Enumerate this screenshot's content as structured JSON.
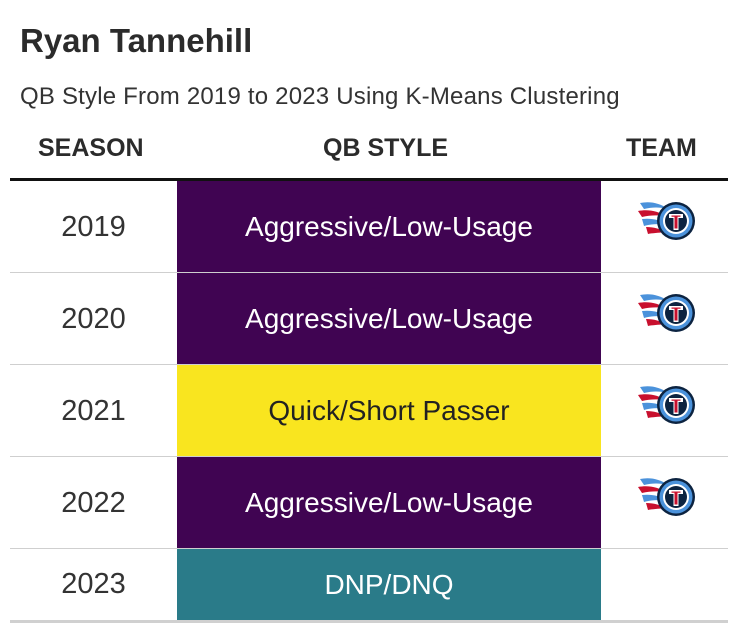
{
  "title": "Ryan Tannehill",
  "subtitle": "QB Style From 2019 to 2023 Using K-Means Clustering",
  "headers": {
    "season": "SEASON",
    "style": "QB STYLE",
    "team": "TEAM"
  },
  "colors": {
    "aggressive": "#400452",
    "quick": "#f9e51f",
    "dnp": "#2a7b89"
  },
  "rows": [
    {
      "season": "2019",
      "style": "Aggressive/Low-Usage",
      "team_icon": "titans-logo-icon"
    },
    {
      "season": "2020",
      "style": "Aggressive/Low-Usage",
      "team_icon": "titans-logo-icon"
    },
    {
      "season": "2021",
      "style": "Quick/Short Passer",
      "team_icon": "titans-logo-icon"
    },
    {
      "season": "2022",
      "style": "Aggressive/Low-Usage",
      "team_icon": "titans-logo-icon"
    },
    {
      "season": "2023",
      "style": "DNP/DNQ",
      "team_icon": ""
    }
  ]
}
